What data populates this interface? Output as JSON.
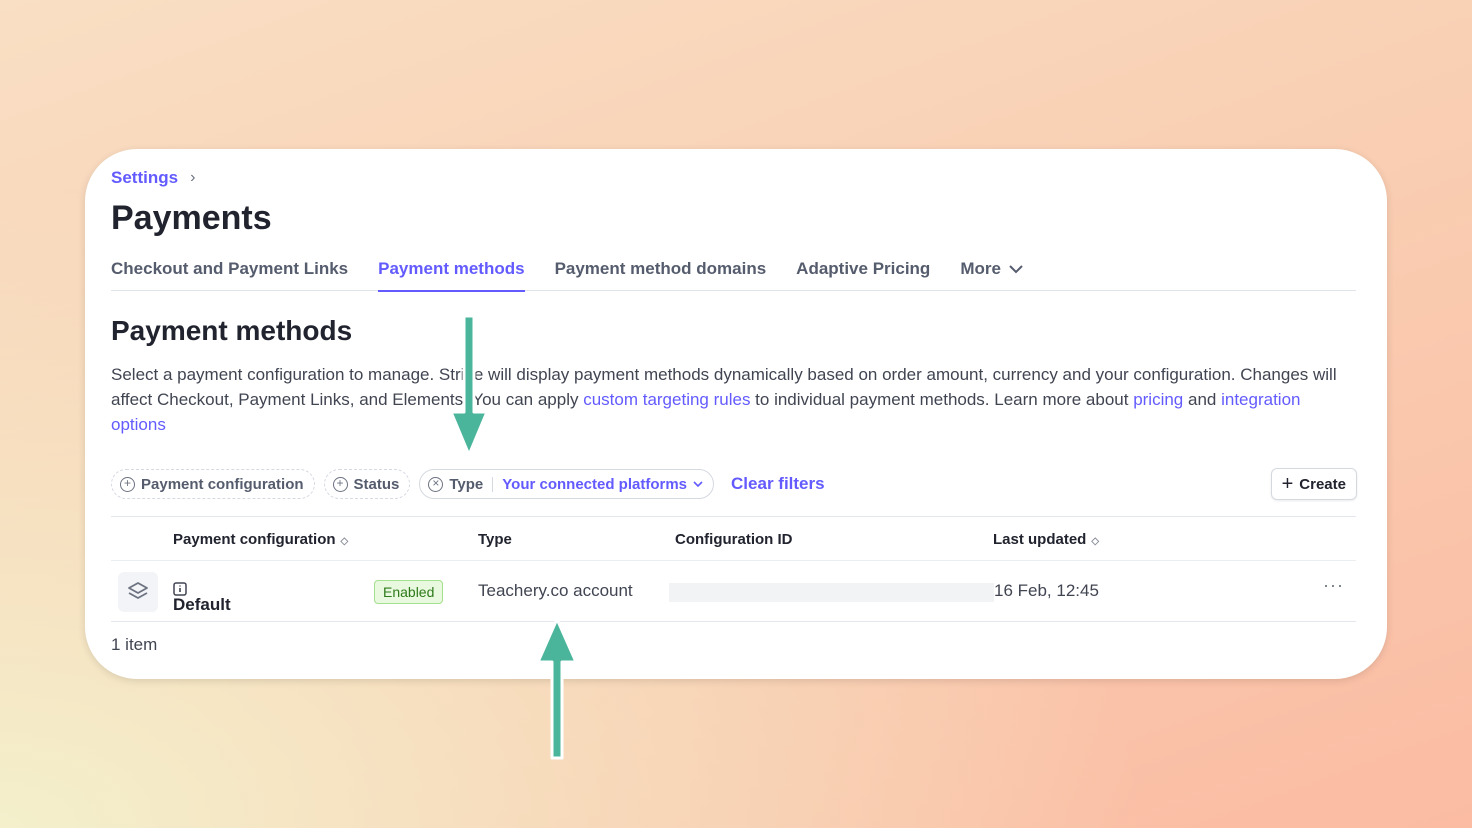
{
  "breadcrumb": {
    "label": "Settings"
  },
  "page_title": "Payments",
  "tabs": [
    {
      "label": "Checkout and Payment Links"
    },
    {
      "label": "Payment methods",
      "active": true
    },
    {
      "label": "Payment method domains"
    },
    {
      "label": "Adaptive Pricing"
    },
    {
      "label": "More"
    }
  ],
  "section": {
    "title": "Payment methods",
    "desc_1": "Select a payment configuration to manage. Stripe will display payment methods dynamically based on order amount, currency and your configuration. Changes will affect Checkout, Payment Links, and Elements. You can apply ",
    "link_targeting": "custom targeting rules",
    "desc_2": " to individual payment methods. Learn more about ",
    "link_pricing": "pricing",
    "desc_3": " and ",
    "link_integration": "integration options"
  },
  "filters": {
    "payment_configuration": "Payment configuration",
    "status": "Status",
    "type": "Type",
    "type_value": "Your connected platforms",
    "clear": "Clear filters"
  },
  "create_label": "Create",
  "table": {
    "headers": [
      "Payment configuration",
      "Type",
      "Configuration ID",
      "Last updated"
    ],
    "rows": [
      {
        "name": "Default",
        "status": "Enabled",
        "type": "Teachery.co account",
        "config_id": "",
        "last_updated": "16 Feb, 12:45"
      }
    ]
  },
  "item_count": "1 item",
  "colors": {
    "accent": "#635bff",
    "arrow": "#4bb59c",
    "badge_bg": "#e8f9df"
  }
}
